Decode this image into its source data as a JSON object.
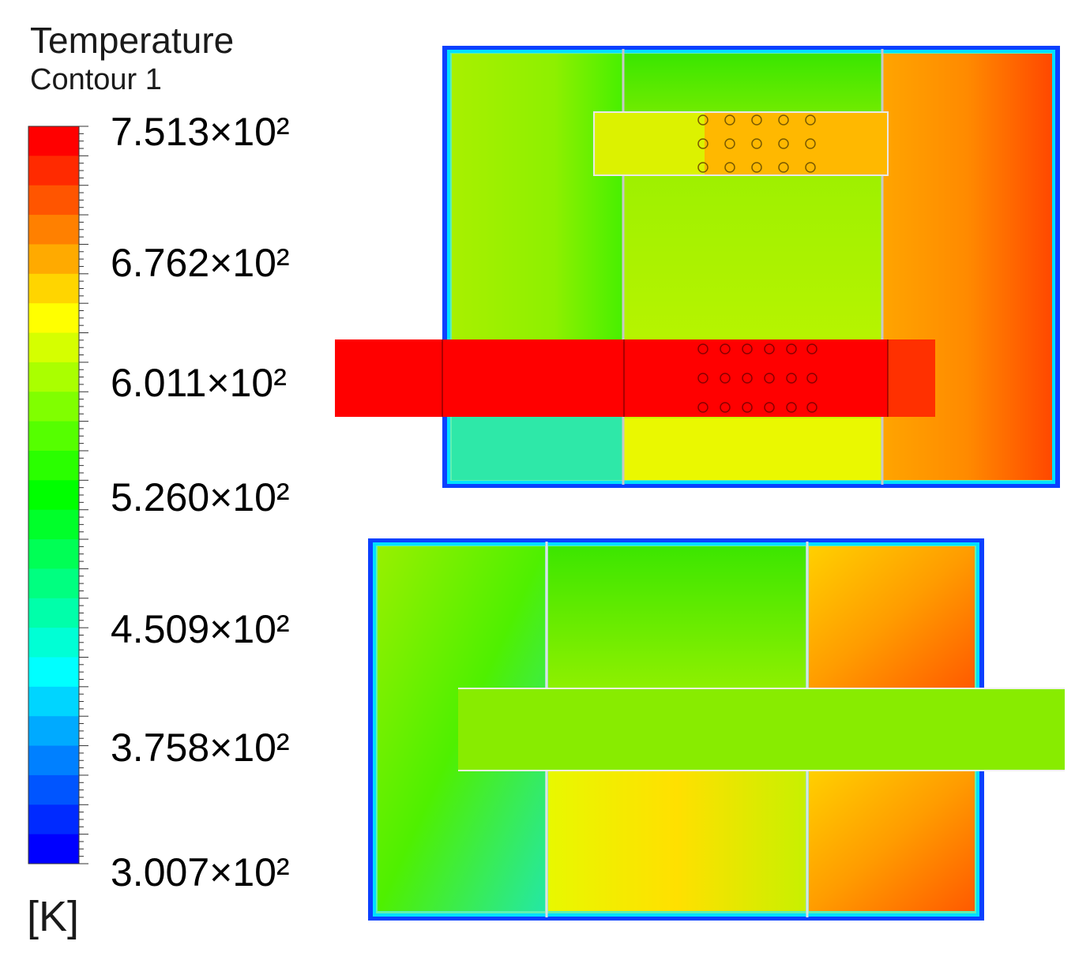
{
  "legend": {
    "title": "Temperature",
    "subtitle": "Contour 1",
    "unit": "[K]",
    "tick_labels": [
      "7.513×10²",
      "6.762×10²",
      "6.011×10²",
      "5.260×10²",
      "4.509×10²",
      "3.758×10²",
      "3.007×10²"
    ],
    "colors": [
      "#ff0000",
      "#ff2a00",
      "#ff5500",
      "#ff8000",
      "#ffaa00",
      "#ffd500",
      "#ffff00",
      "#d5ff00",
      "#aaff00",
      "#80ff00",
      "#55ff00",
      "#2aff00",
      "#00ff00",
      "#00ff2a",
      "#00ff55",
      "#00ff80",
      "#00ffaa",
      "#00ffd5",
      "#00ffff",
      "#00d5ff",
      "#00aaff",
      "#0080ff",
      "#0055ff",
      "#002aff",
      "#0000ff"
    ]
  },
  "contour_colors": {
    "hot": "#ff1a00",
    "warm": "#ffa000",
    "mid": "#b4f000",
    "cool": "#2ee89a",
    "edge": "#0a40ff"
  }
}
